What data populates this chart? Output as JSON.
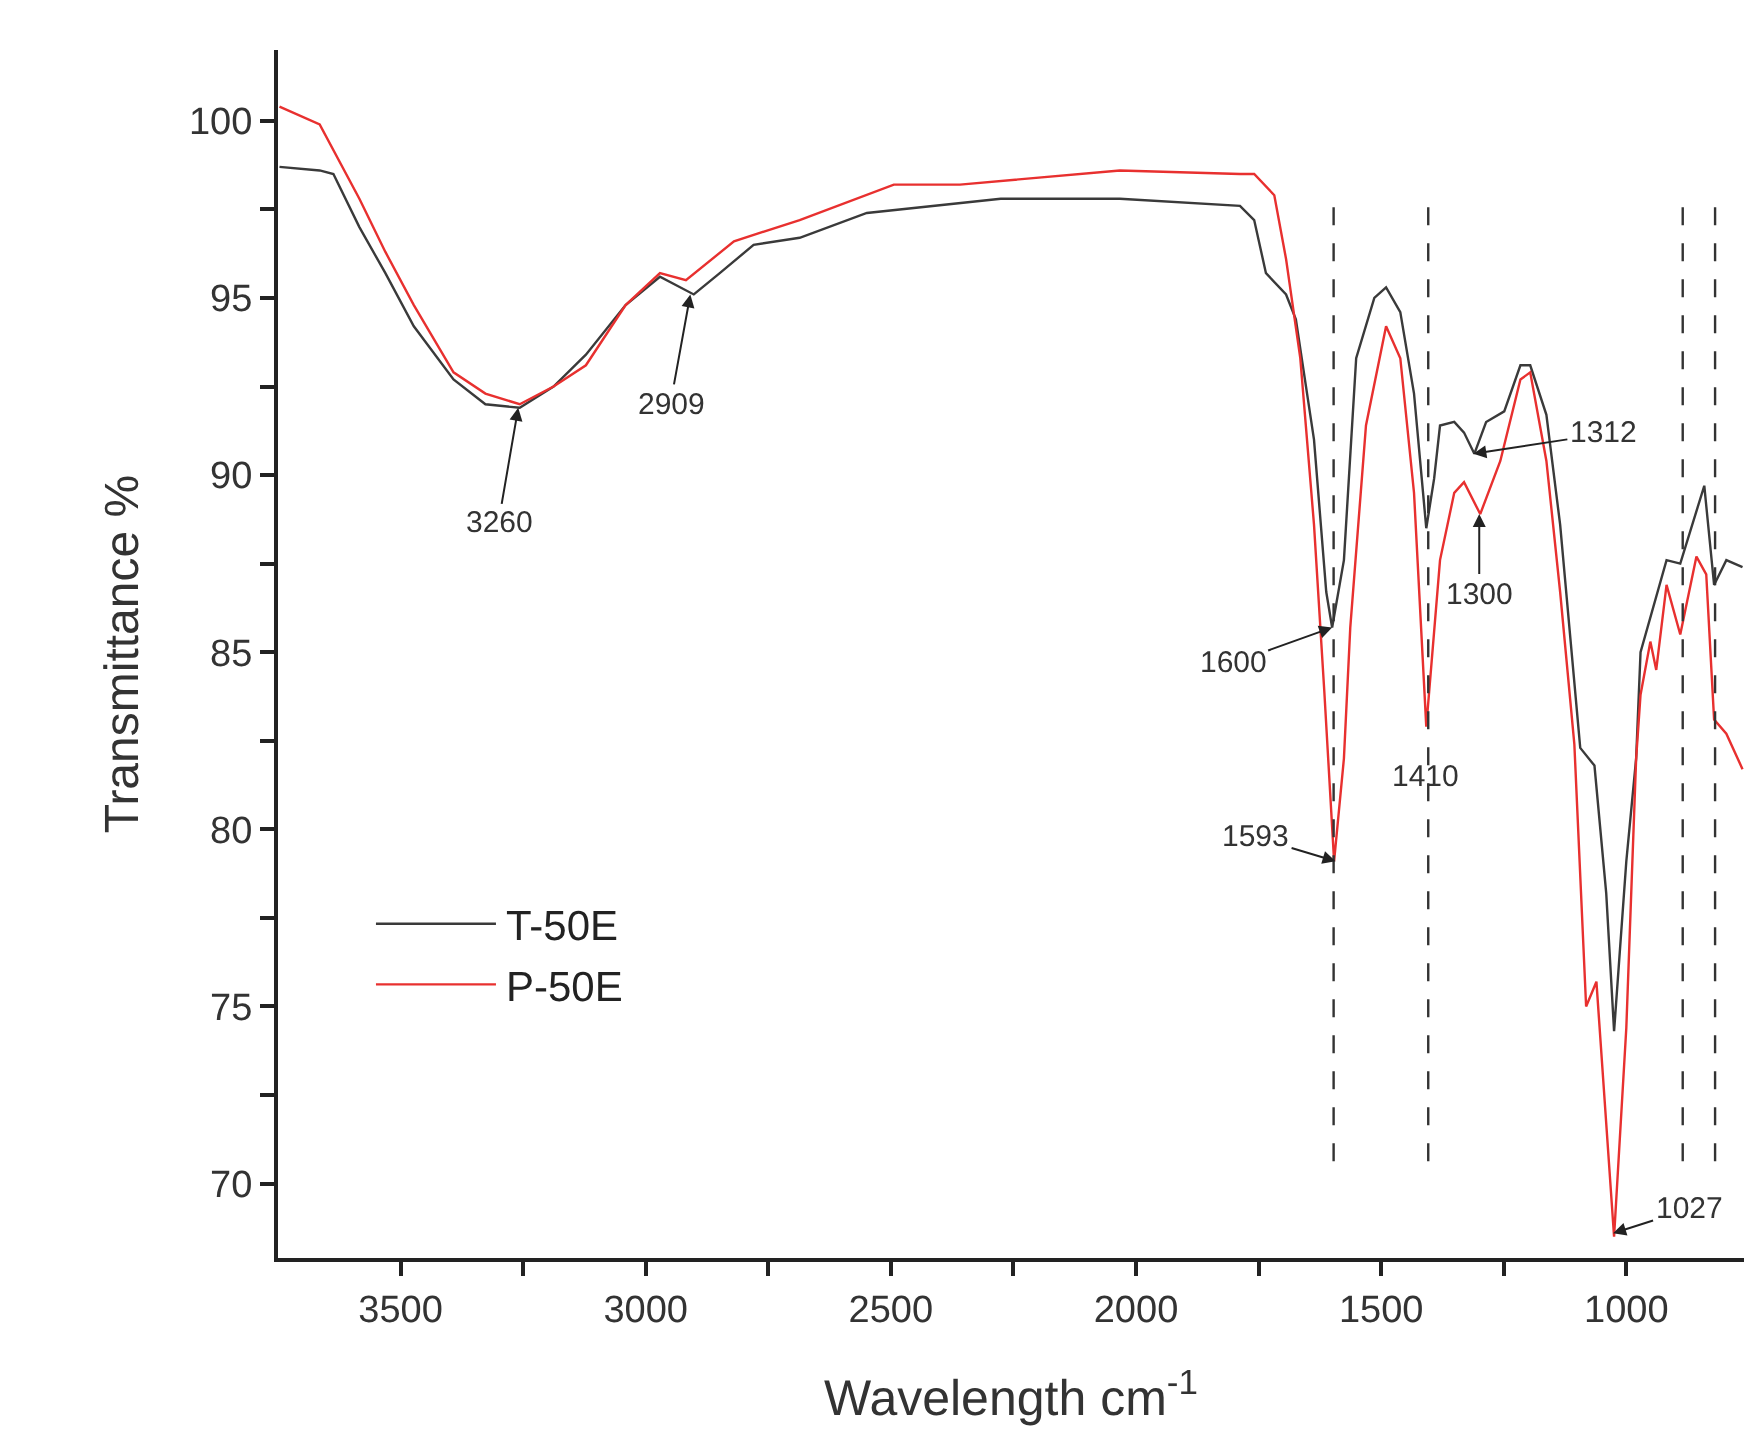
{
  "chart_data": {
    "type": "line",
    "xlabel": "Wavelength cm$^{-1}$",
    "ylabel": "Transmittance %",
    "xlim": [
      3750,
      760
    ],
    "ylim": [
      67.9,
      102
    ],
    "xticks": [
      3500,
      {
        "value": 3250,
        "label": null
      },
      3000,
      {
        "value": 2750,
        "label": null
      },
      2500,
      {
        "value": 2250,
        "label": null
      },
      2000,
      {
        "value": 1750,
        "label": null
      },
      1500,
      {
        "value": 1250,
        "label": null
      },
      1000
    ],
    "yticks": [
      70,
      {
        "value": 72.5,
        "label": null
      },
      75,
      {
        "value": 77.5,
        "label": null
      },
      80,
      {
        "value": 82.5,
        "label": null
      },
      85,
      {
        "value": 87.5,
        "label": null
      },
      90,
      {
        "value": 92.5,
        "label": null
      },
      95,
      {
        "value": 97.5,
        "label": null
      },
      100
    ],
    "grid": false,
    "legend": "bottom left",
    "marker": "none",
    "line_style": "solid",
    "series": [
      {
        "name": "T-50E",
        "color": "#3a3a3a",
        "x": [
          3747,
          3665,
          3637,
          3584,
          3531,
          3473,
          3392,
          3327,
          3257,
          3188,
          3122,
          3041,
          2971,
          2902,
          2849,
          2780,
          2686,
          2549,
          2276,
          2033,
          1788,
          1759,
          1735,
          1694,
          1674,
          1637,
          1612,
          1600,
          1576,
          1551,
          1514,
          1490,
          1461,
          1433,
          1408,
          1392,
          1380,
          1351,
          1331,
          1310,
          1286,
          1249,
          1216,
          1196,
          1163,
          1135,
          1094,
          1065,
          1041,
          1025,
          1000,
          980,
          971,
          918,
          890,
          841,
          821,
          796,
          763
        ],
        "values": [
          98.7,
          98.6,
          98.5,
          97.0,
          95.7,
          94.2,
          92.7,
          92.0,
          91.9,
          92.5,
          93.4,
          94.8,
          95.6,
          95.1,
          95.7,
          96.5,
          96.7,
          97.4,
          97.8,
          97.8,
          97.6,
          97.2,
          95.7,
          95.1,
          94.4,
          91.0,
          86.7,
          85.7,
          87.6,
          93.3,
          95.0,
          95.3,
          94.6,
          92.3,
          88.5,
          89.9,
          91.4,
          91.5,
          91.2,
          90.6,
          91.5,
          91.8,
          93.1,
          93.1,
          91.7,
          88.6,
          82.3,
          81.8,
          78.2,
          74.3,
          79.1,
          82.0,
          85.0,
          87.6,
          87.5,
          89.7,
          86.9,
          87.6,
          87.4
        ]
      },
      {
        "name": "P-50E",
        "color": "#e8302f",
        "x": [
          3747,
          3665,
          3584,
          3531,
          3473,
          3392,
          3327,
          3257,
          3188,
          3122,
          3041,
          2971,
          2918,
          2820,
          2686,
          2494,
          2359,
          2033,
          1788,
          1759,
          1718,
          1694,
          1665,
          1637,
          1616,
          1596,
          1576,
          1563,
          1531,
          1490,
          1461,
          1433,
          1408,
          1380,
          1351,
          1331,
          1298,
          1257,
          1216,
          1196,
          1163,
          1135,
          1106,
          1082,
          1061,
          1025,
          1000,
          980,
          971,
          951,
          939,
          918,
          890,
          857,
          837,
          821,
          796,
          763
        ],
        "values": [
          100.4,
          99.9,
          97.8,
          96.3,
          94.8,
          92.9,
          92.3,
          92.0,
          92.5,
          93.1,
          94.8,
          95.7,
          95.5,
          96.6,
          97.2,
          98.2,
          98.2,
          98.6,
          98.5,
          98.5,
          97.9,
          96.1,
          93.3,
          88.6,
          83.9,
          79.1,
          82.0,
          85.7,
          91.4,
          94.2,
          93.3,
          89.5,
          82.9,
          87.6,
          89.5,
          89.8,
          88.9,
          90.4,
          92.7,
          92.9,
          90.4,
          86.7,
          82.4,
          75.0,
          75.7,
          68.5,
          74.4,
          82.0,
          83.8,
          85.3,
          84.5,
          86.9,
          85.5,
          87.7,
          87.2,
          83.1,
          82.7,
          81.7
        ]
      }
    ],
    "ref_lines": [
      {
        "axis": "x",
        "value": 1597,
        "line_style": "dashed",
        "color": "#333333"
      },
      {
        "axis": "x",
        "value": 1404,
        "line_style": "dashed",
        "color": "#333333"
      },
      {
        "axis": "x",
        "value": 885,
        "line_style": "dashed",
        "color": "#333333"
      },
      {
        "axis": "x",
        "value": 819,
        "line_style": "dashed",
        "color": "#333333"
      }
    ],
    "annotations": [
      {
        "text": "3260",
        "x": 3260,
        "y": 91.9
      },
      {
        "text": "2909",
        "x": 2909,
        "y": 95.1
      },
      {
        "text": "1312",
        "x": 1312,
        "y": 90.6
      },
      {
        "text": "1300",
        "x": 1300,
        "y": 88.9
      },
      {
        "text": "1600",
        "x": 1600,
        "y": 85.7
      },
      {
        "text": "1593",
        "x": 1593,
        "y": 79.1
      },
      {
        "text": "1410",
        "x": 1410,
        "y": 81.5
      },
      {
        "text": "1027",
        "x": 1027,
        "y": 68.6
      }
    ]
  }
}
